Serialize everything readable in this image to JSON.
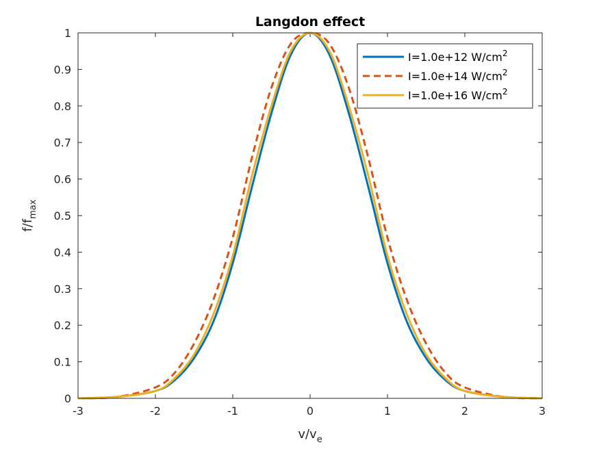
{
  "chart_data": {
    "type": "line",
    "title": "Langdon effect",
    "xlabel": {
      "base": "v/v",
      "sub": "e"
    },
    "ylabel": {
      "base": "f/f",
      "sub": "max"
    },
    "xlim": [
      -3,
      3
    ],
    "ylim": [
      0,
      1
    ],
    "xticks": [
      "-3",
      "-2",
      "-1",
      "0",
      "1",
      "2",
      "3"
    ],
    "yticks": [
      "0",
      "0.1",
      "0.2",
      "0.3",
      "0.4",
      "0.5",
      "0.6",
      "0.7",
      "0.8",
      "0.9",
      "1"
    ],
    "grid": false,
    "legend_position": "top-right",
    "series": [
      {
        "name": "I=1.0e+12 W/cm",
        "name_sup": "2",
        "color": "#0072BD",
        "style": "solid",
        "x": [
          -3,
          -2.5,
          -2,
          -1.75,
          -1.5,
          -1.25,
          -1,
          -0.75,
          -0.5,
          -0.25,
          0,
          0.25,
          0.5,
          0.75,
          1,
          1.25,
          1.5,
          1.75,
          2,
          2.5,
          3
        ],
        "y": [
          0,
          0.004,
          0.02,
          0.05,
          0.11,
          0.21,
          0.37,
          0.58,
          0.78,
          0.94,
          1,
          0.94,
          0.78,
          0.58,
          0.37,
          0.21,
          0.11,
          0.05,
          0.02,
          0.004,
          0
        ]
      },
      {
        "name": "I=1.0e+14 W/cm",
        "name_sup": "2",
        "color": "#D95319",
        "style": "dashed",
        "x": [
          -3,
          -2.5,
          -2,
          -1.75,
          -1.5,
          -1.25,
          -1,
          -0.75,
          -0.5,
          -0.25,
          0,
          0.25,
          0.5,
          0.75,
          1,
          1.25,
          1.5,
          1.75,
          2,
          2.5,
          3
        ],
        "y": [
          0,
          0.004,
          0.03,
          0.07,
          0.15,
          0.27,
          0.44,
          0.66,
          0.85,
          0.97,
          1,
          0.97,
          0.85,
          0.66,
          0.44,
          0.27,
          0.15,
          0.07,
          0.03,
          0.004,
          0
        ]
      },
      {
        "name": "I=1.0e+16 W/cm",
        "name_sup": "2",
        "color": "#EDB120",
        "style": "solid",
        "x": [
          -3,
          -2.5,
          -2,
          -1.75,
          -1.5,
          -1.25,
          -1,
          -0.75,
          -0.5,
          -0.25,
          0,
          0.25,
          0.5,
          0.75,
          1,
          1.25,
          1.5,
          1.75,
          2,
          2.5,
          3
        ],
        "y": [
          0,
          0.004,
          0.02,
          0.055,
          0.12,
          0.23,
          0.39,
          0.61,
          0.8,
          0.95,
          1,
          0.95,
          0.8,
          0.61,
          0.39,
          0.23,
          0.12,
          0.055,
          0.02,
          0.004,
          0
        ]
      }
    ]
  }
}
